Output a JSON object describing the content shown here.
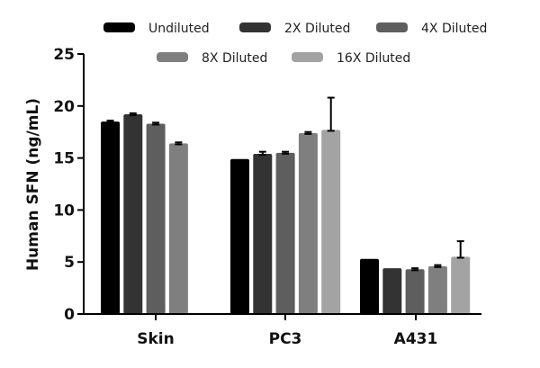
{
  "chart_data": {
    "type": "bar",
    "title": "",
    "xlabel": "",
    "ylabel": "Human SFN (ng/mL)",
    "ylim": [
      0,
      25
    ],
    "yticks": [
      0,
      5,
      10,
      15,
      20,
      25
    ],
    "grid": false,
    "legend_position": "top",
    "categories": [
      "Skin",
      "PC3",
      "A431"
    ],
    "series": [
      {
        "name": "Undiluted",
        "color": "#000000",
        "values": [
          18.5,
          14.9,
          5.3
        ],
        "errors": [
          0.1,
          0.0,
          0.0
        ]
      },
      {
        "name": "2X Diluted",
        "color": "#333333",
        "values": [
          19.2,
          15.4,
          4.4
        ],
        "errors": [
          0.1,
          0.2,
          0.0
        ]
      },
      {
        "name": "4X Diluted",
        "color": "#5e5e5e",
        "values": [
          18.3,
          15.5,
          4.3
        ],
        "errors": [
          0.1,
          0.1,
          0.1
        ]
      },
      {
        "name": "8X Diluted",
        "color": "#7f7f7f",
        "values": [
          16.4,
          17.4,
          4.6
        ],
        "errors": [
          0.1,
          0.1,
          0.1
        ]
      },
      {
        "name": "16X Diluted",
        "color": "#a3a3a3",
        "values": [
          null,
          17.7,
          5.5
        ],
        "errors": [
          null,
          3.1,
          1.5
        ]
      }
    ]
  }
}
